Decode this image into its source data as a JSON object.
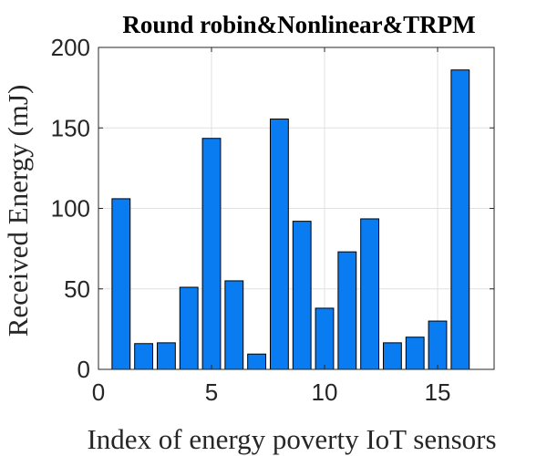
{
  "chart_data": {
    "type": "bar",
    "title": "Round robin&Nonlinear&TRPM",
    "xlabel": "Index of energy poverty IoT sensors",
    "ylabel": "Received Energy (mJ)",
    "x": [
      1,
      2,
      3,
      4,
      5,
      6,
      7,
      8,
      9,
      10,
      11,
      12,
      13,
      14,
      15,
      16
    ],
    "values": [
      106,
      16,
      16.5,
      51,
      143.5,
      55,
      9.5,
      155.5,
      92,
      38,
      73,
      93.5,
      16.5,
      20,
      30,
      186
    ],
    "xlim": [
      0,
      17.5
    ],
    "ylim": [
      0,
      200
    ],
    "xticks": [
      0,
      5,
      10,
      15
    ],
    "yticks": [
      0,
      50,
      100,
      150,
      200
    ],
    "grid": true,
    "colors": {
      "bar": "#0a7cf2",
      "edge": "#000000",
      "grid": "#e1e1e1",
      "axis": "#262626"
    }
  }
}
